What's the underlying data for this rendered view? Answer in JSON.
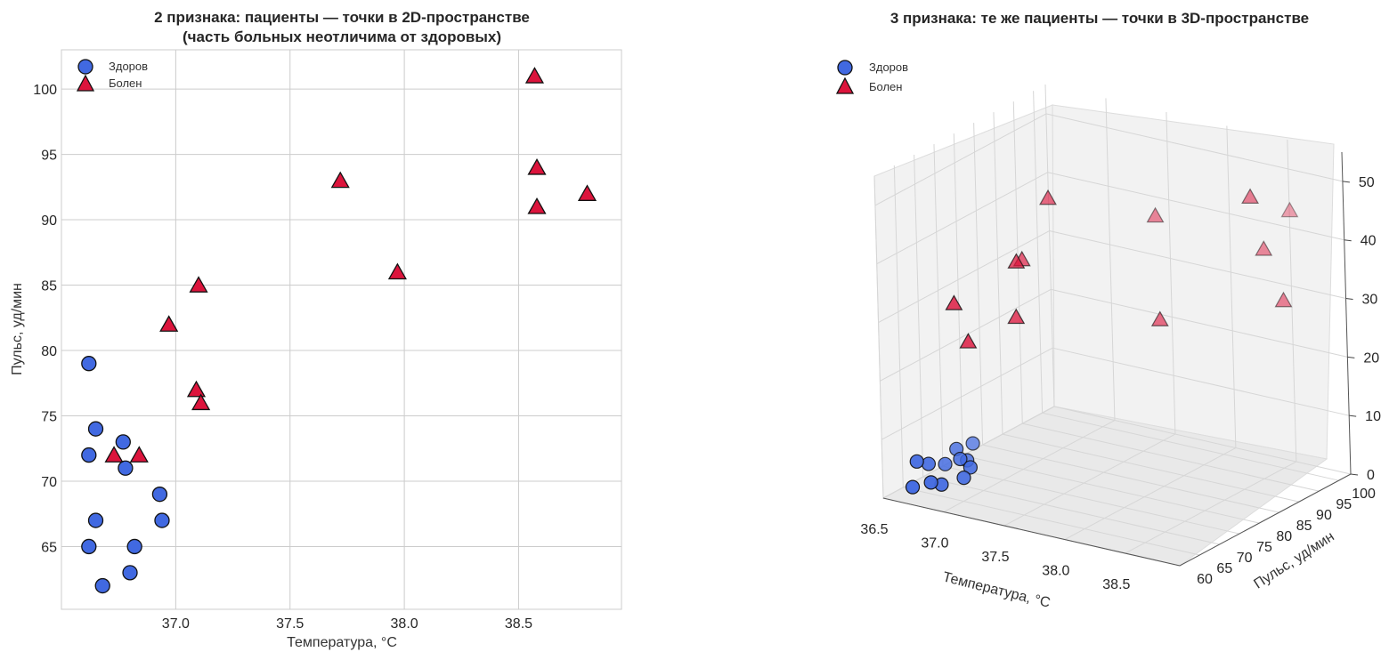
{
  "chart_data": [
    {
      "type": "scatter",
      "title": "2 признака: пациенты — точки в 2D-пространстве\n(часть больных неотличима от здоровых)",
      "xlabel": "Температура, °C",
      "ylabel": "Пульс, уд/мин",
      "xlim": [
        36.5,
        38.95
      ],
      "ylim": [
        60.2,
        103
      ],
      "xticks": [
        "37.0",
        "37.5",
        "38.0",
        "38.5"
      ],
      "yticks": [
        "65",
        "70",
        "75",
        "80",
        "85",
        "90",
        "95",
        "100"
      ],
      "grid": true,
      "legend": "top-left",
      "series": [
        {
          "name": "Здоров",
          "marker": "circle",
          "color": "#4169e1",
          "x": [
            36.62,
            36.65,
            36.62,
            36.65,
            36.62,
            36.68,
            36.77,
            36.78,
            36.82,
            36.8,
            36.93,
            36.94
          ],
          "y": [
            79,
            74,
            72,
            67,
            65,
            62,
            73,
            71,
            65,
            63,
            69,
            67
          ]
        },
        {
          "name": "Болен",
          "marker": "triangle",
          "color": "#dc143c",
          "x": [
            36.73,
            36.84,
            36.97,
            37.09,
            37.11,
            37.1,
            37.72,
            37.97,
            38.57,
            38.58,
            38.58,
            38.8
          ],
          "y": [
            72,
            72,
            82,
            77,
            76,
            85,
            93,
            86,
            101,
            94,
            91,
            92
          ]
        }
      ]
    },
    {
      "type": "scatter3d",
      "title": "3 признака: те же пациенты — точки в 3D-пространстве",
      "xlabel": "Температура, °C",
      "ylabel": "Пульс, уд/мин",
      "xticks": [
        "36.5",
        "37.0",
        "37.5",
        "38.0",
        "38.5"
      ],
      "yticks": [
        "60",
        "65",
        "70",
        "75",
        "80",
        "85",
        "90",
        "95",
        "100"
      ],
      "zticks": [
        "0",
        "10",
        "20",
        "30",
        "40",
        "50"
      ],
      "grid": true,
      "legend": "top-left",
      "series": [
        {
          "name": "Здоров",
          "marker": "circle",
          "color": "#4169e1",
          "x": [
            36.62,
            36.65,
            36.62,
            36.65,
            36.62,
            36.68,
            36.77,
            36.78,
            36.82,
            36.8,
            36.93,
            36.94
          ],
          "y": [
            79,
            74,
            72,
            67,
            65,
            62,
            73,
            71,
            65,
            63,
            69,
            67
          ],
          "z": [
            3,
            4,
            2,
            4,
            5,
            2,
            3,
            4,
            2,
            3,
            4,
            3
          ]
        },
        {
          "name": "Болен",
          "marker": "triangle",
          "color": "#dc143c",
          "x": [
            36.73,
            36.84,
            36.97,
            37.09,
            37.11,
            37.1,
            37.72,
            37.97,
            38.57,
            38.58,
            38.58,
            38.8
          ],
          "y": [
            72,
            72,
            82,
            77,
            76,
            85,
            93,
            86,
            101,
            94,
            91,
            92
          ],
          "z": [
            30,
            24,
            35,
            37,
            28,
            45,
            42,
            28,
            44,
            40,
            50,
            33
          ]
        }
      ]
    }
  ]
}
